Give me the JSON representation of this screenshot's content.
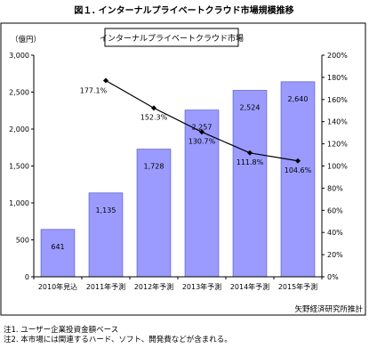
{
  "chart_data": {
    "type": "bar",
    "title": "図１. インターナルプライベートクラウド市場規模推移",
    "legend_label": "インターナルプライベートクラウド市場",
    "unit_left": "（億円）",
    "categories": [
      "2010年見込",
      "2011年予測",
      "2012年予測",
      "2013年予測",
      "2014年予測",
      "2015年予測"
    ],
    "series": [
      {
        "name": "インターナルプライベートクラウド市場",
        "type": "bar",
        "axis": "left",
        "values": [
          641,
          1135,
          1728,
          2257,
          2524,
          2640
        ],
        "labels": [
          "641",
          "1,135",
          "1,728",
          "2,257",
          "2,524",
          "2,640"
        ]
      },
      {
        "type": "line",
        "axis": "right",
        "values": [
          null,
          177.1,
          152.3,
          130.7,
          111.8,
          104.6
        ],
        "labels": [
          "",
          "177.1%",
          "152.3%",
          "130.7%",
          "111.8%",
          "104.6%"
        ]
      }
    ],
    "y_left": {
      "min": 0,
      "max": 3000,
      "ticks": [
        0,
        500,
        1000,
        1500,
        2000,
        2500,
        3000
      ],
      "tick_labels": [
        "0",
        "500",
        "1,000",
        "1,500",
        "2,000",
        "2,500",
        "3,000"
      ]
    },
    "y_right": {
      "min": 0,
      "max": 200,
      "ticks": [
        0,
        20,
        40,
        60,
        80,
        100,
        120,
        140,
        160,
        180,
        200
      ],
      "tick_labels": [
        "0%",
        "20%",
        "40%",
        "60%",
        "80%",
        "100%",
        "120%",
        "140%",
        "160%",
        "180%",
        "200%"
      ]
    },
    "grid": false,
    "legend_position": "top"
  },
  "source": "矢野経済研究所推計",
  "notes": [
    "注1. ユーザー企業投資金額ベース",
    "注2. 本市場には関連するハード、ソフト、開発費などが含まれる。"
  ],
  "colors": {
    "bar_fill": "#9b9bff",
    "bar_stroke": "#6666cc",
    "line": "#000000",
    "axis": "#000000",
    "frame": "#000000"
  }
}
